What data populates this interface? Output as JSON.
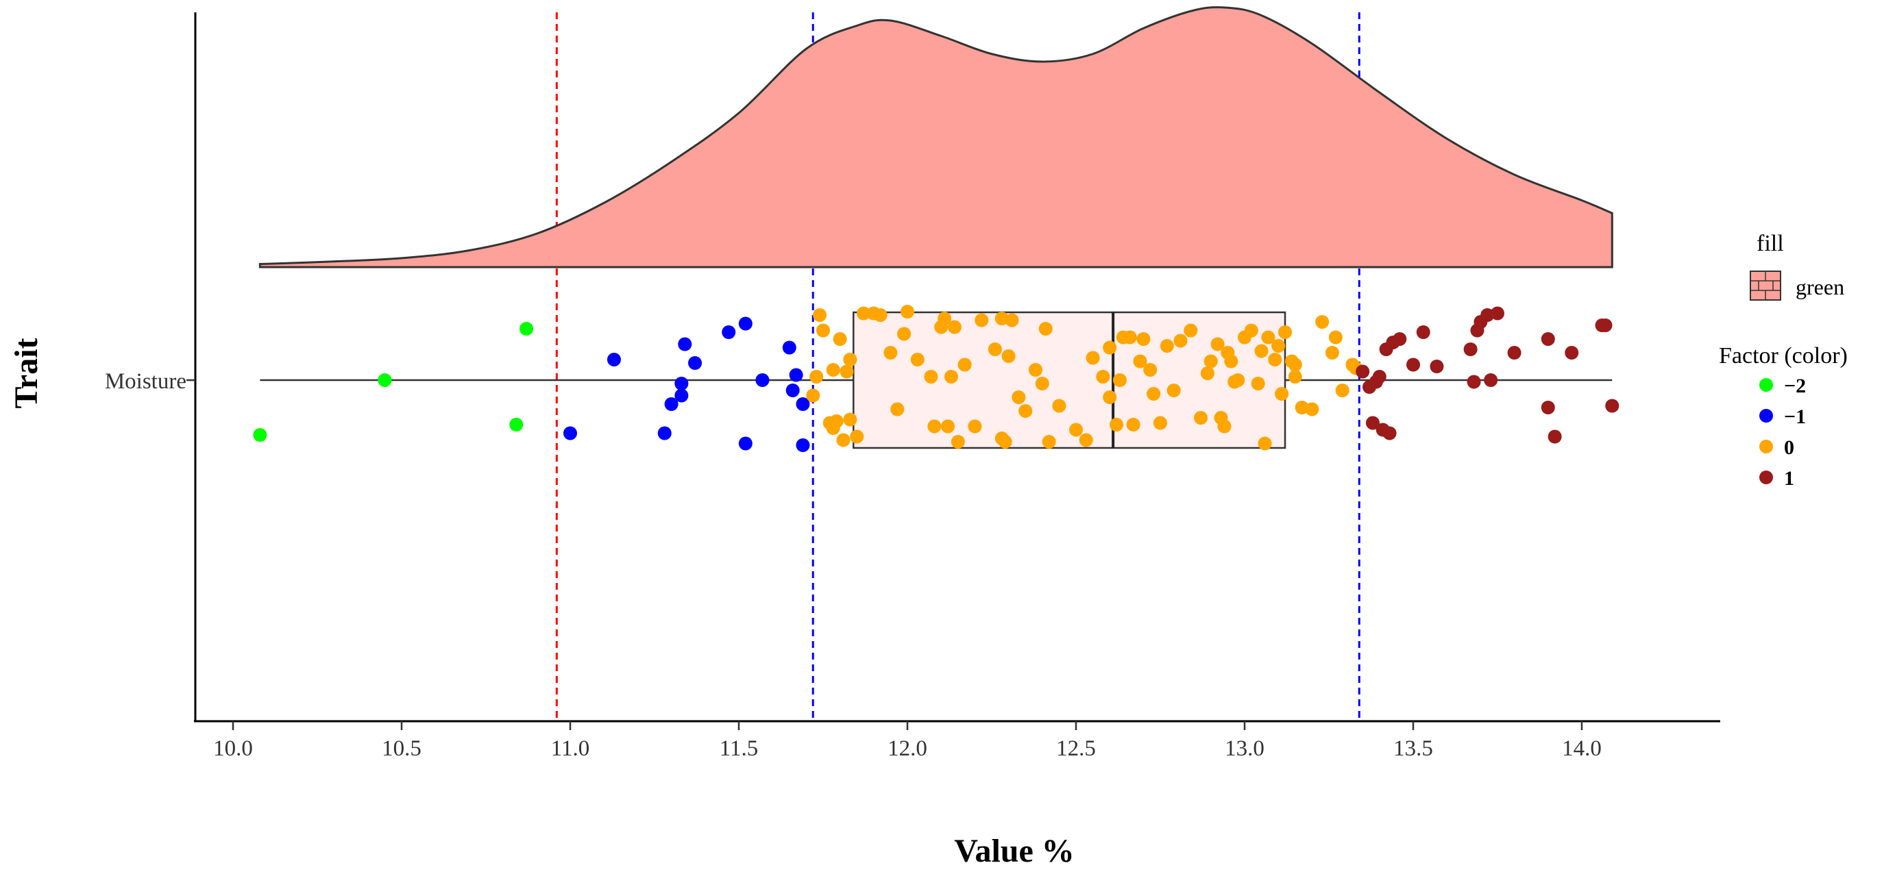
{
  "chart_data": {
    "type": "raincloud",
    "x_label": "Value %",
    "y_label": "Trait",
    "category": "Moisture",
    "xlim": [
      9.9,
      14.3
    ],
    "x_ticks": [
      "10.0",
      "10.5",
      "11.0",
      "11.5",
      "12.0",
      "12.5",
      "13.0",
      "13.5",
      "14.0"
    ],
    "reference_lines": [
      {
        "value": 10.96,
        "color": "#ff0000",
        "style": "dashed"
      },
      {
        "value": 11.72,
        "color": "#0000ff",
        "style": "dashed"
      },
      {
        "value": 13.34,
        "color": "#0000ff",
        "style": "dashed"
      }
    ],
    "density": {
      "fill_color": "#fea19a",
      "fill_label": "green",
      "x": [
        10.08,
        10.3,
        10.5,
        10.7,
        10.9,
        11.1,
        11.3,
        11.5,
        11.7,
        11.85,
        11.95,
        12.1,
        12.25,
        12.4,
        12.55,
        12.7,
        12.85,
        12.95,
        13.05,
        13.2,
        13.4,
        13.6,
        13.8,
        14.0,
        14.09
      ],
      "density": [
        0.012,
        0.022,
        0.035,
        0.065,
        0.13,
        0.25,
        0.41,
        0.6,
        0.85,
        0.94,
        0.96,
        0.9,
        0.83,
        0.8,
        0.83,
        0.93,
        1.0,
        1.01,
        0.98,
        0.87,
        0.68,
        0.5,
        0.36,
        0.26,
        0.21
      ]
    },
    "boxplot": {
      "whisker_low": 10.08,
      "q1": 11.84,
      "median": 12.61,
      "q3": 13.12,
      "whisker_high": 14.09,
      "fill_color": "#ffefef"
    },
    "factor_legend_title": "Factor (color)",
    "fill_legend_title": "fill",
    "factors": [
      {
        "label": "−2",
        "color": "#00ff00"
      },
      {
        "label": "−1",
        "color": "#0000ff"
      },
      {
        "label": "0",
        "color": "#ffa500"
      },
      {
        "label": "1",
        "color": "#9b1a1a"
      }
    ],
    "points": [
      [
        10.08,
        -0.32,
        0
      ],
      [
        10.45,
        0.0,
        0
      ],
      [
        10.84,
        -0.26,
        0
      ],
      [
        10.87,
        0.3,
        0
      ],
      [
        11.0,
        -0.31,
        1
      ],
      [
        11.13,
        0.12,
        1
      ],
      [
        11.28,
        -0.31,
        1
      ],
      [
        11.3,
        -0.14,
        1
      ],
      [
        11.33,
        -0.09,
        1
      ],
      [
        11.33,
        -0.02,
        1
      ],
      [
        11.34,
        0.21,
        1
      ],
      [
        11.37,
        0.1,
        1
      ],
      [
        11.47,
        0.28,
        1
      ],
      [
        11.52,
        -0.37,
        1
      ],
      [
        11.52,
        0.33,
        1
      ],
      [
        11.57,
        0.0,
        1
      ],
      [
        11.65,
        0.19,
        1
      ],
      [
        11.66,
        -0.06,
        1
      ],
      [
        11.67,
        0.03,
        1
      ],
      [
        11.69,
        -0.38,
        1
      ],
      [
        11.69,
        -0.14,
        1
      ],
      [
        11.72,
        -0.09,
        2
      ],
      [
        11.73,
        0.02,
        2
      ],
      [
        11.74,
        0.38,
        2
      ],
      [
        11.75,
        0.29,
        2
      ],
      [
        11.77,
        -0.25,
        2
      ],
      [
        11.78,
        -0.28,
        2
      ],
      [
        11.78,
        0.06,
        2
      ],
      [
        11.79,
        -0.24,
        2
      ],
      [
        11.8,
        0.24,
        2
      ],
      [
        11.81,
        -0.35,
        2
      ],
      [
        11.82,
        0.05,
        2
      ],
      [
        11.83,
        -0.23,
        2
      ],
      [
        11.83,
        0.12,
        2
      ],
      [
        11.85,
        -0.33,
        2
      ],
      [
        11.87,
        0.39,
        2
      ],
      [
        11.9,
        0.39,
        2
      ],
      [
        11.92,
        0.38,
        2
      ],
      [
        11.95,
        0.16,
        2
      ],
      [
        11.97,
        -0.17,
        2
      ],
      [
        11.99,
        0.27,
        2
      ],
      [
        12.0,
        0.4,
        2
      ],
      [
        12.03,
        0.12,
        2
      ],
      [
        12.07,
        0.02,
        2
      ],
      [
        12.08,
        -0.27,
        2
      ],
      [
        12.1,
        0.31,
        2
      ],
      [
        12.11,
        0.36,
        2
      ],
      [
        12.12,
        -0.27,
        2
      ],
      [
        12.13,
        0.02,
        2
      ],
      [
        12.14,
        0.31,
        2
      ],
      [
        12.15,
        -0.36,
        2
      ],
      [
        12.17,
        0.09,
        2
      ],
      [
        12.2,
        -0.27,
        2
      ],
      [
        12.22,
        0.35,
        2
      ],
      [
        12.26,
        0.18,
        2
      ],
      [
        12.28,
        0.36,
        2
      ],
      [
        12.28,
        -0.34,
        2
      ],
      [
        12.29,
        -0.36,
        2
      ],
      [
        12.3,
        0.14,
        2
      ],
      [
        12.31,
        0.35,
        2
      ],
      [
        12.33,
        -0.1,
        2
      ],
      [
        12.35,
        -0.18,
        2
      ],
      [
        12.38,
        0.06,
        2
      ],
      [
        12.4,
        -0.02,
        2
      ],
      [
        12.41,
        0.3,
        2
      ],
      [
        12.42,
        -0.36,
        2
      ],
      [
        12.45,
        -0.15,
        2
      ],
      [
        12.5,
        -0.29,
        2
      ],
      [
        12.53,
        -0.35,
        2
      ],
      [
        12.55,
        0.13,
        2
      ],
      [
        12.58,
        0.02,
        2
      ],
      [
        12.6,
        -0.1,
        2
      ],
      [
        12.6,
        0.19,
        2
      ],
      [
        12.62,
        -0.26,
        2
      ],
      [
        12.63,
        0.0,
        2
      ],
      [
        12.64,
        0.25,
        2
      ],
      [
        12.66,
        0.25,
        2
      ],
      [
        12.67,
        -0.26,
        2
      ],
      [
        12.69,
        0.11,
        2
      ],
      [
        12.7,
        0.24,
        2
      ],
      [
        12.72,
        0.06,
        2
      ],
      [
        12.73,
        -0.08,
        2
      ],
      [
        12.75,
        -0.25,
        2
      ],
      [
        12.77,
        0.2,
        2
      ],
      [
        12.79,
        -0.06,
        2
      ],
      [
        12.81,
        0.23,
        2
      ],
      [
        12.84,
        0.29,
        2
      ],
      [
        12.87,
        -0.22,
        2
      ],
      [
        12.89,
        0.04,
        2
      ],
      [
        12.9,
        0.11,
        2
      ],
      [
        12.92,
        0.21,
        2
      ],
      [
        12.93,
        -0.22,
        2
      ],
      [
        12.94,
        -0.27,
        2
      ],
      [
        12.95,
        0.16,
        2
      ],
      [
        12.96,
        0.11,
        2
      ],
      [
        12.97,
        -0.01,
        2
      ],
      [
        12.98,
        0.0,
        2
      ],
      [
        13.0,
        0.25,
        2
      ],
      [
        13.02,
        0.29,
        2
      ],
      [
        13.04,
        -0.02,
        2
      ],
      [
        13.05,
        0.17,
        2
      ],
      [
        13.06,
        -0.37,
        2
      ],
      [
        13.07,
        0.25,
        2
      ],
      [
        13.09,
        0.12,
        2
      ],
      [
        13.1,
        0.2,
        2
      ],
      [
        13.11,
        -0.08,
        2
      ],
      [
        13.12,
        0.28,
        2
      ],
      [
        13.14,
        0.11,
        2
      ],
      [
        13.15,
        0.09,
        2
      ],
      [
        13.15,
        0.02,
        2
      ],
      [
        13.17,
        -0.16,
        2
      ],
      [
        13.2,
        -0.17,
        2
      ],
      [
        13.23,
        0.34,
        2
      ],
      [
        13.26,
        0.16,
        2
      ],
      [
        13.27,
        0.25,
        2
      ],
      [
        13.29,
        -0.06,
        2
      ],
      [
        13.32,
        0.09,
        2
      ],
      [
        13.33,
        0.07,
        2
      ],
      [
        13.35,
        0.05,
        3
      ],
      [
        13.37,
        -0.04,
        3
      ],
      [
        13.38,
        -0.25,
        3
      ],
      [
        13.39,
        -0.01,
        3
      ],
      [
        13.4,
        0.02,
        3
      ],
      [
        13.41,
        -0.29,
        3
      ],
      [
        13.42,
        0.18,
        3
      ],
      [
        13.43,
        -0.31,
        3
      ],
      [
        13.44,
        0.22,
        3
      ],
      [
        13.46,
        0.24,
        3
      ],
      [
        13.5,
        0.09,
        3
      ],
      [
        13.53,
        0.28,
        3
      ],
      [
        13.57,
        0.08,
        3
      ],
      [
        13.67,
        0.18,
        3
      ],
      [
        13.68,
        -0.01,
        3
      ],
      [
        13.69,
        0.29,
        3
      ],
      [
        13.7,
        0.34,
        3
      ],
      [
        13.72,
        0.38,
        3
      ],
      [
        13.73,
        0.0,
        3
      ],
      [
        13.75,
        0.39,
        3
      ],
      [
        13.8,
        0.16,
        3
      ],
      [
        13.9,
        0.24,
        3
      ],
      [
        13.9,
        -0.16,
        3
      ],
      [
        13.92,
        -0.33,
        3
      ],
      [
        13.97,
        0.16,
        3
      ],
      [
        14.06,
        0.32,
        3
      ],
      [
        14.07,
        0.32,
        3
      ],
      [
        14.09,
        -0.15,
        3
      ]
    ]
  }
}
